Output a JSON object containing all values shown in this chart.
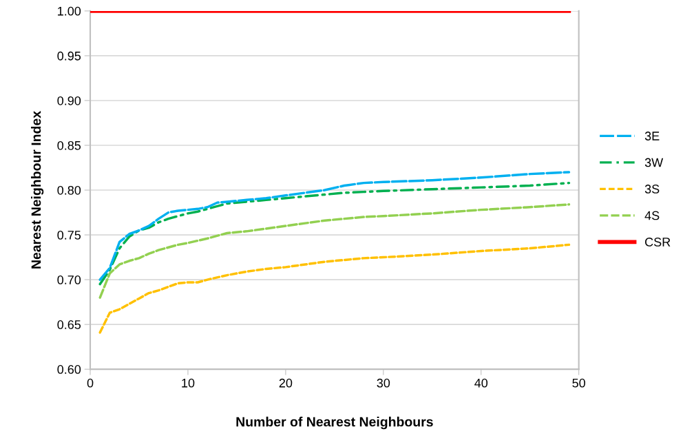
{
  "chart_data": {
    "type": "line",
    "xlabel": "Number of Nearest Neighbours",
    "ylabel": "Nearest Neighbour Index",
    "xlim": [
      0,
      50
    ],
    "xticks": [
      0,
      10,
      20,
      30,
      40,
      50
    ],
    "ylim": [
      0.6,
      1.0
    ],
    "yticks": [
      {
        "value": 0.6,
        "label": "0.60"
      },
      {
        "value": 0.65,
        "label": "0.65"
      },
      {
        "value": 0.7,
        "label": "0.70"
      },
      {
        "value": 0.75,
        "label": "0.75"
      },
      {
        "value": 0.8,
        "label": "0.80"
      },
      {
        "value": 0.85,
        "label": "0.85"
      },
      {
        "value": 0.9,
        "label": "0.90"
      },
      {
        "value": 0.95,
        "label": "0.95"
      },
      {
        "value": 1.0,
        "label": "1.00"
      }
    ],
    "grid": "y",
    "legend": "right",
    "marker": "none",
    "series": [
      {
        "name": "3E",
        "color": "#00b0f0",
        "line_style": "dashed",
        "x": [
          1,
          2,
          3,
          4,
          5,
          6,
          7,
          8,
          9,
          10,
          11,
          12,
          13,
          14,
          16,
          18,
          20,
          22,
          24,
          26,
          28,
          30,
          35,
          40,
          45,
          49
        ],
        "values": [
          0.7,
          0.713,
          0.742,
          0.751,
          0.755,
          0.76,
          0.768,
          0.775,
          0.777,
          0.778,
          0.779,
          0.781,
          0.786,
          0.787,
          0.789,
          0.791,
          0.794,
          0.797,
          0.8,
          0.805,
          0.808,
          0.809,
          0.811,
          0.814,
          0.818,
          0.82
        ]
      },
      {
        "name": "3W",
        "color": "#00b050",
        "line_style": "dashdot",
        "x": [
          1,
          2,
          3,
          4,
          5,
          6,
          7,
          8,
          9,
          10,
          11,
          12,
          13,
          14,
          16,
          18,
          20,
          22,
          24,
          26,
          28,
          30,
          35,
          40,
          45,
          49
        ],
        "values": [
          0.695,
          0.711,
          0.735,
          0.748,
          0.755,
          0.758,
          0.764,
          0.768,
          0.771,
          0.774,
          0.776,
          0.779,
          0.782,
          0.785,
          0.787,
          0.789,
          0.791,
          0.793,
          0.795,
          0.797,
          0.798,
          0.799,
          0.801,
          0.803,
          0.805,
          0.808
        ]
      },
      {
        "name": "3S",
        "color": "#ffc000",
        "line_style": "dotted",
        "x": [
          1,
          2,
          3,
          4,
          5,
          6,
          7,
          8,
          9,
          10,
          11,
          12,
          14,
          16,
          18,
          20,
          22,
          24,
          26,
          28,
          30,
          35,
          40,
          45,
          49
        ],
        "values": [
          0.641,
          0.663,
          0.667,
          0.673,
          0.679,
          0.685,
          0.688,
          0.692,
          0.696,
          0.697,
          0.697,
          0.7,
          0.705,
          0.709,
          0.712,
          0.714,
          0.717,
          0.72,
          0.722,
          0.724,
          0.725,
          0.728,
          0.732,
          0.735,
          0.739
        ]
      },
      {
        "name": "4S",
        "color": "#92d050",
        "line_style": "dashed",
        "x": [
          1,
          2,
          3,
          4,
          5,
          6,
          7,
          8,
          9,
          10,
          12,
          14,
          16,
          18,
          20,
          22,
          24,
          26,
          28,
          30,
          35,
          40,
          45,
          49
        ],
        "values": [
          0.68,
          0.707,
          0.717,
          0.721,
          0.724,
          0.729,
          0.733,
          0.736,
          0.739,
          0.741,
          0.746,
          0.752,
          0.754,
          0.757,
          0.76,
          0.763,
          0.766,
          0.768,
          0.77,
          0.771,
          0.774,
          0.778,
          0.781,
          0.784
        ]
      },
      {
        "name": "CSR",
        "color": "#ff0000",
        "line_style": "solid",
        "x": [
          0,
          49
        ],
        "values": [
          1.0,
          1.0
        ]
      }
    ]
  }
}
